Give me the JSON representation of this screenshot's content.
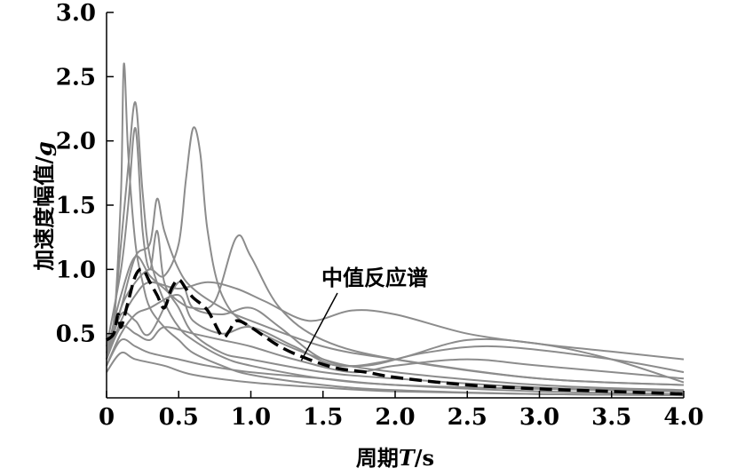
{
  "chart_data": {
    "type": "line",
    "xlabel": {
      "main": "周期",
      "var": "T",
      "unit": "/s"
    },
    "ylabel": {
      "main": "加速度幅值/",
      "unit": "g"
    },
    "xlim": [
      0,
      4.0
    ],
    "ylim": [
      0,
      3.0
    ],
    "x_ticks": [
      0,
      0.5,
      1.0,
      1.5,
      2.0,
      2.5,
      3.0,
      3.5,
      4.0
    ],
    "x_tick_labels": [
      "0",
      "0.5",
      "1.0",
      "1.5",
      "2.0",
      "2.5",
      "3.0",
      "3.5",
      "4.0"
    ],
    "y_ticks": [
      0.5,
      1.0,
      1.5,
      2.0,
      2.5,
      3.0
    ],
    "y_tick_labels": [
      "0.5",
      "1.0",
      "1.5",
      "2.0",
      "2.5",
      "3.0"
    ],
    "grid": false,
    "legend": "none",
    "annotation": {
      "text": "中值反应谱",
      "points_to": [
        1.35,
        0.29
      ]
    },
    "colors": {
      "records": "#8c8c8c",
      "median": "#000000"
    },
    "series": [
      {
        "style": "record",
        "points": [
          [
            0,
            0.35
          ],
          [
            0.05,
            0.55
          ],
          [
            0.1,
            1.6
          ],
          [
            0.12,
            2.6
          ],
          [
            0.15,
            1.9
          ],
          [
            0.2,
            1.2
          ],
          [
            0.25,
            0.9
          ],
          [
            0.3,
            0.7
          ],
          [
            0.4,
            0.55
          ],
          [
            0.5,
            0.45
          ],
          [
            0.6,
            0.35
          ],
          [
            0.8,
            0.25
          ],
          [
            1.0,
            0.18
          ],
          [
            1.5,
            0.1
          ],
          [
            2.0,
            0.06
          ],
          [
            3.0,
            0.03
          ],
          [
            4.0,
            0.02
          ]
        ]
      },
      {
        "style": "record",
        "points": [
          [
            0,
            0.3
          ],
          [
            0.05,
            0.6
          ],
          [
            0.1,
            1.2
          ],
          [
            0.15,
            1.8
          ],
          [
            0.2,
            2.3
          ],
          [
            0.25,
            1.6
          ],
          [
            0.3,
            1.1
          ],
          [
            0.4,
            0.75
          ],
          [
            0.5,
            0.55
          ],
          [
            0.6,
            0.45
          ],
          [
            0.8,
            0.32
          ],
          [
            1.0,
            0.25
          ],
          [
            1.5,
            0.15
          ],
          [
            2.0,
            0.1
          ],
          [
            3.0,
            0.05
          ],
          [
            4.0,
            0.03
          ]
        ]
      },
      {
        "style": "record",
        "points": [
          [
            0,
            0.3
          ],
          [
            0.1,
            0.7
          ],
          [
            0.2,
            0.9
          ],
          [
            0.3,
            1.0
          ],
          [
            0.4,
            0.95
          ],
          [
            0.5,
            1.2
          ],
          [
            0.55,
            1.7
          ],
          [
            0.6,
            2.1
          ],
          [
            0.65,
            1.9
          ],
          [
            0.7,
            1.3
          ],
          [
            0.8,
            0.8
          ],
          [
            1.0,
            0.55
          ],
          [
            1.5,
            0.3
          ],
          [
            2.0,
            0.2
          ],
          [
            3.0,
            0.1
          ],
          [
            4.0,
            0.06
          ]
        ]
      },
      {
        "style": "record",
        "points": [
          [
            0,
            0.35
          ],
          [
            0.1,
            0.8
          ],
          [
            0.2,
            1.1
          ],
          [
            0.3,
            0.95
          ],
          [
            0.4,
            0.85
          ],
          [
            0.5,
            0.75
          ],
          [
            0.6,
            0.7
          ],
          [
            0.75,
            0.75
          ],
          [
            0.9,
            1.25
          ],
          [
            1.0,
            1.1
          ],
          [
            1.2,
            0.7
          ],
          [
            1.5,
            0.45
          ],
          [
            2.0,
            0.3
          ],
          [
            3.0,
            0.15
          ],
          [
            4.0,
            0.1
          ]
        ]
      },
      {
        "style": "record",
        "points": [
          [
            0,
            0.3
          ],
          [
            0.1,
            0.6
          ],
          [
            0.2,
            0.8
          ],
          [
            0.3,
            0.9
          ],
          [
            0.5,
            0.85
          ],
          [
            0.7,
            0.9
          ],
          [
            0.9,
            0.85
          ],
          [
            1.1,
            0.75
          ],
          [
            1.4,
            0.6
          ],
          [
            1.7,
            0.68
          ],
          [
            2.0,
            0.65
          ],
          [
            2.5,
            0.5
          ],
          [
            3.0,
            0.42
          ],
          [
            3.5,
            0.36
          ],
          [
            4.0,
            0.3
          ]
        ]
      },
      {
        "style": "record",
        "points": [
          [
            0,
            0.4
          ],
          [
            0.1,
            1.0
          ],
          [
            0.15,
            1.5
          ],
          [
            0.2,
            2.1
          ],
          [
            0.25,
            1.3
          ],
          [
            0.3,
            1.0
          ],
          [
            0.35,
            1.3
          ],
          [
            0.4,
            0.9
          ],
          [
            0.5,
            0.7
          ],
          [
            0.6,
            0.5
          ],
          [
            0.8,
            0.35
          ],
          [
            1.0,
            0.3
          ],
          [
            1.5,
            0.2
          ],
          [
            2.0,
            0.15
          ],
          [
            3.0,
            0.08
          ],
          [
            4.0,
            0.05
          ]
        ]
      },
      {
        "style": "record",
        "points": [
          [
            0,
            0.3
          ],
          [
            0.1,
            0.7
          ],
          [
            0.2,
            1.1
          ],
          [
            0.3,
            1.2
          ],
          [
            0.35,
            1.55
          ],
          [
            0.4,
            1.3
          ],
          [
            0.5,
            1.0
          ],
          [
            0.6,
            0.85
          ],
          [
            0.8,
            0.7
          ],
          [
            1.0,
            0.6
          ],
          [
            1.5,
            0.4
          ],
          [
            2.0,
            0.3
          ],
          [
            3.0,
            0.15
          ],
          [
            4.0,
            0.1
          ]
        ]
      },
      {
        "style": "record",
        "points": [
          [
            0,
            0.25
          ],
          [
            0.1,
            0.5
          ],
          [
            0.2,
            0.65
          ],
          [
            0.3,
            0.7
          ],
          [
            0.5,
            0.8
          ],
          [
            0.6,
            0.6
          ],
          [
            0.8,
            0.5
          ],
          [
            1.0,
            0.55
          ],
          [
            1.3,
            0.4
          ],
          [
            1.6,
            0.25
          ],
          [
            2.0,
            0.3
          ],
          [
            2.5,
            0.45
          ],
          [
            3.0,
            0.42
          ],
          [
            3.5,
            0.3
          ],
          [
            4.0,
            0.12
          ]
        ]
      },
      {
        "style": "record",
        "points": [
          [
            0,
            0.3
          ],
          [
            0.1,
            0.65
          ],
          [
            0.2,
            0.6
          ],
          [
            0.3,
            0.5
          ],
          [
            0.5,
            0.9
          ],
          [
            0.6,
            0.7
          ],
          [
            0.8,
            0.65
          ],
          [
            1.0,
            0.7
          ],
          [
            1.2,
            0.55
          ],
          [
            1.5,
            0.3
          ],
          [
            1.8,
            0.25
          ],
          [
            2.2,
            0.35
          ],
          [
            2.7,
            0.4
          ],
          [
            3.5,
            0.3
          ],
          [
            4.0,
            0.2
          ]
        ]
      },
      {
        "style": "record",
        "points": [
          [
            0,
            0.3
          ],
          [
            0.1,
            0.55
          ],
          [
            0.2,
            0.5
          ],
          [
            0.3,
            0.45
          ],
          [
            0.4,
            0.55
          ],
          [
            0.6,
            0.5
          ],
          [
            0.8,
            0.45
          ],
          [
            1.0,
            0.4
          ],
          [
            1.3,
            0.3
          ],
          [
            1.7,
            0.2
          ],
          [
            2.0,
            0.25
          ],
          [
            2.5,
            0.3
          ],
          [
            3.0,
            0.25
          ],
          [
            4.0,
            0.15
          ]
        ]
      },
      {
        "style": "record",
        "points": [
          [
            0,
            0.25
          ],
          [
            0.1,
            0.45
          ],
          [
            0.2,
            0.4
          ],
          [
            0.3,
            0.35
          ],
          [
            0.5,
            0.3
          ],
          [
            0.7,
            0.25
          ],
          [
            1.0,
            0.2
          ],
          [
            1.5,
            0.15
          ],
          [
            2.0,
            0.1
          ],
          [
            3.0,
            0.07
          ],
          [
            4.0,
            0.05
          ]
        ]
      },
      {
        "style": "record",
        "points": [
          [
            0,
            0.2
          ],
          [
            0.1,
            0.35
          ],
          [
            0.2,
            0.3
          ],
          [
            0.4,
            0.25
          ],
          [
            0.6,
            0.18
          ],
          [
            1.0,
            0.12
          ],
          [
            1.5,
            0.08
          ],
          [
            2.0,
            0.05
          ],
          [
            3.0,
            0.03
          ],
          [
            4.0,
            0.02
          ]
        ]
      },
      {
        "style": "median",
        "points": [
          [
            0,
            0.45
          ],
          [
            0.05,
            0.5
          ],
          [
            0.08,
            0.65
          ],
          [
            0.1,
            0.55
          ],
          [
            0.15,
            0.75
          ],
          [
            0.2,
            0.95
          ],
          [
            0.25,
            1.0
          ],
          [
            0.3,
            0.9
          ],
          [
            0.35,
            0.8
          ],
          [
            0.4,
            0.7
          ],
          [
            0.45,
            0.85
          ],
          [
            0.5,
            0.92
          ],
          [
            0.55,
            0.85
          ],
          [
            0.6,
            0.78
          ],
          [
            0.7,
            0.68
          ],
          [
            0.8,
            0.48
          ],
          [
            0.85,
            0.52
          ],
          [
            0.9,
            0.6
          ],
          [
            1.0,
            0.55
          ],
          [
            1.2,
            0.4
          ],
          [
            1.4,
            0.3
          ],
          [
            1.6,
            0.23
          ],
          [
            1.8,
            0.2
          ],
          [
            2.0,
            0.16
          ],
          [
            2.5,
            0.1
          ],
          [
            3.0,
            0.07
          ],
          [
            3.5,
            0.05
          ],
          [
            4.0,
            0.03
          ]
        ]
      }
    ]
  }
}
